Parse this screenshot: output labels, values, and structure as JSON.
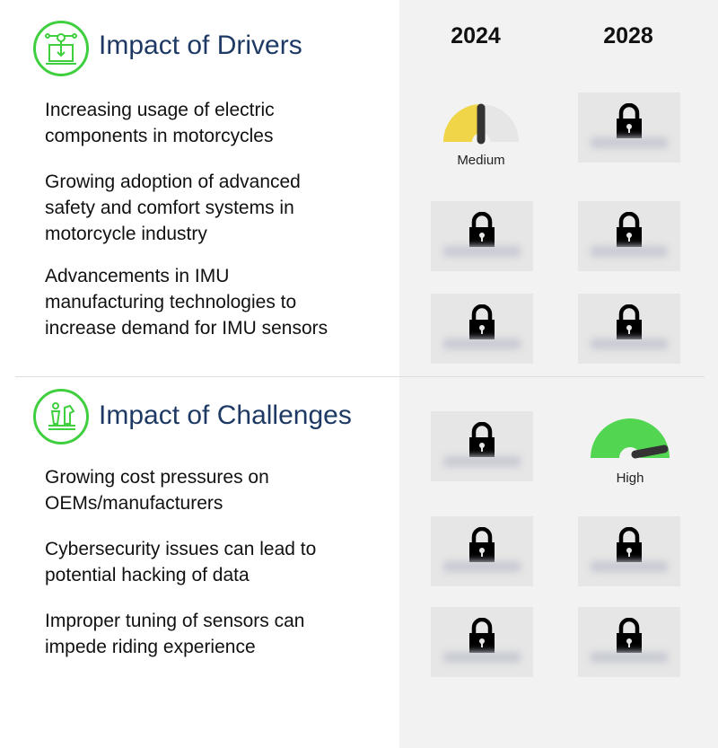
{
  "columns": {
    "year_1": "2024",
    "year_2": "2028"
  },
  "drivers": {
    "title": "Impact of Drivers",
    "icon": "circuit-laptop-icon",
    "items": [
      {
        "label": "Increasing usage of electric components in motorcycles",
        "y2024": "Medium",
        "y2028": "locked"
      },
      {
        "label": "Growing adoption of advanced safety and comfort systems in motorcycle industry",
        "y2024": "locked",
        "y2028": "locked"
      },
      {
        "label": "Advancements in IMU manufacturing technologies to increase demand for IMU sensors",
        "y2024": "locked",
        "y2028": "locked"
      }
    ]
  },
  "challenges": {
    "title": "Impact of Challenges",
    "icon": "chess-pieces-icon",
    "items": [
      {
        "label": "Growing cost pressures on OEMs/manufacturers",
        "y2024": "locked",
        "y2028": "High"
      },
      {
        "label": "Cybersecurity issues can lead to potential hacking of data",
        "y2024": "locked",
        "y2028": "locked"
      },
      {
        "label": "Improper tuning of sensors can impede riding experience",
        "y2024": "locked",
        "y2028": "locked"
      }
    ]
  },
  "colors": {
    "title": "#1e3a64",
    "icon_ring": "#3fcf3f",
    "medium": "#f0d548",
    "high": "#52d652",
    "panel": "#f2f2f2"
  }
}
